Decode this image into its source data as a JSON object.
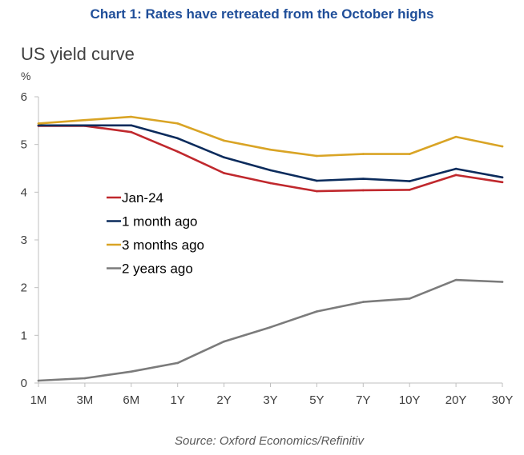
{
  "chart_data": {
    "type": "line",
    "title": "Chart 1: Rates have retreated from the October highs",
    "subtitle": "US yield curve",
    "unit": "%",
    "source": "Source: Oxford Economics/Refinitiv",
    "categories": [
      "1M",
      "3M",
      "6M",
      "1Y",
      "2Y",
      "3Y",
      "5Y",
      "7Y",
      "10Y",
      "20Y",
      "30Y"
    ],
    "ylim": [
      0,
      6
    ],
    "yticks": [
      "0",
      "1",
      "2",
      "3",
      "4",
      "5",
      "6"
    ],
    "grid": false,
    "legend_position": "left-middle",
    "series": [
      {
        "name": "Jan-24",
        "color": "#c0282d",
        "values": [
          5.39,
          5.39,
          5.26,
          4.85,
          4.4,
          4.19,
          4.02,
          4.04,
          4.05,
          4.36,
          4.21
        ]
      },
      {
        "name": "1 month ago",
        "color": "#0b2b5c",
        "values": [
          5.4,
          5.4,
          5.4,
          5.13,
          4.73,
          4.46,
          4.24,
          4.28,
          4.23,
          4.49,
          4.31
        ]
      },
      {
        "name": "3 months ago",
        "color": "#d9a425",
        "values": [
          5.44,
          5.51,
          5.58,
          5.44,
          5.08,
          4.89,
          4.76,
          4.8,
          4.8,
          5.16,
          4.96
        ]
      },
      {
        "name": "2 years ago",
        "color": "#7b7b7b",
        "values": [
          0.05,
          0.1,
          0.24,
          0.42,
          0.87,
          1.17,
          1.5,
          1.7,
          1.77,
          2.16,
          2.12
        ]
      }
    ]
  }
}
